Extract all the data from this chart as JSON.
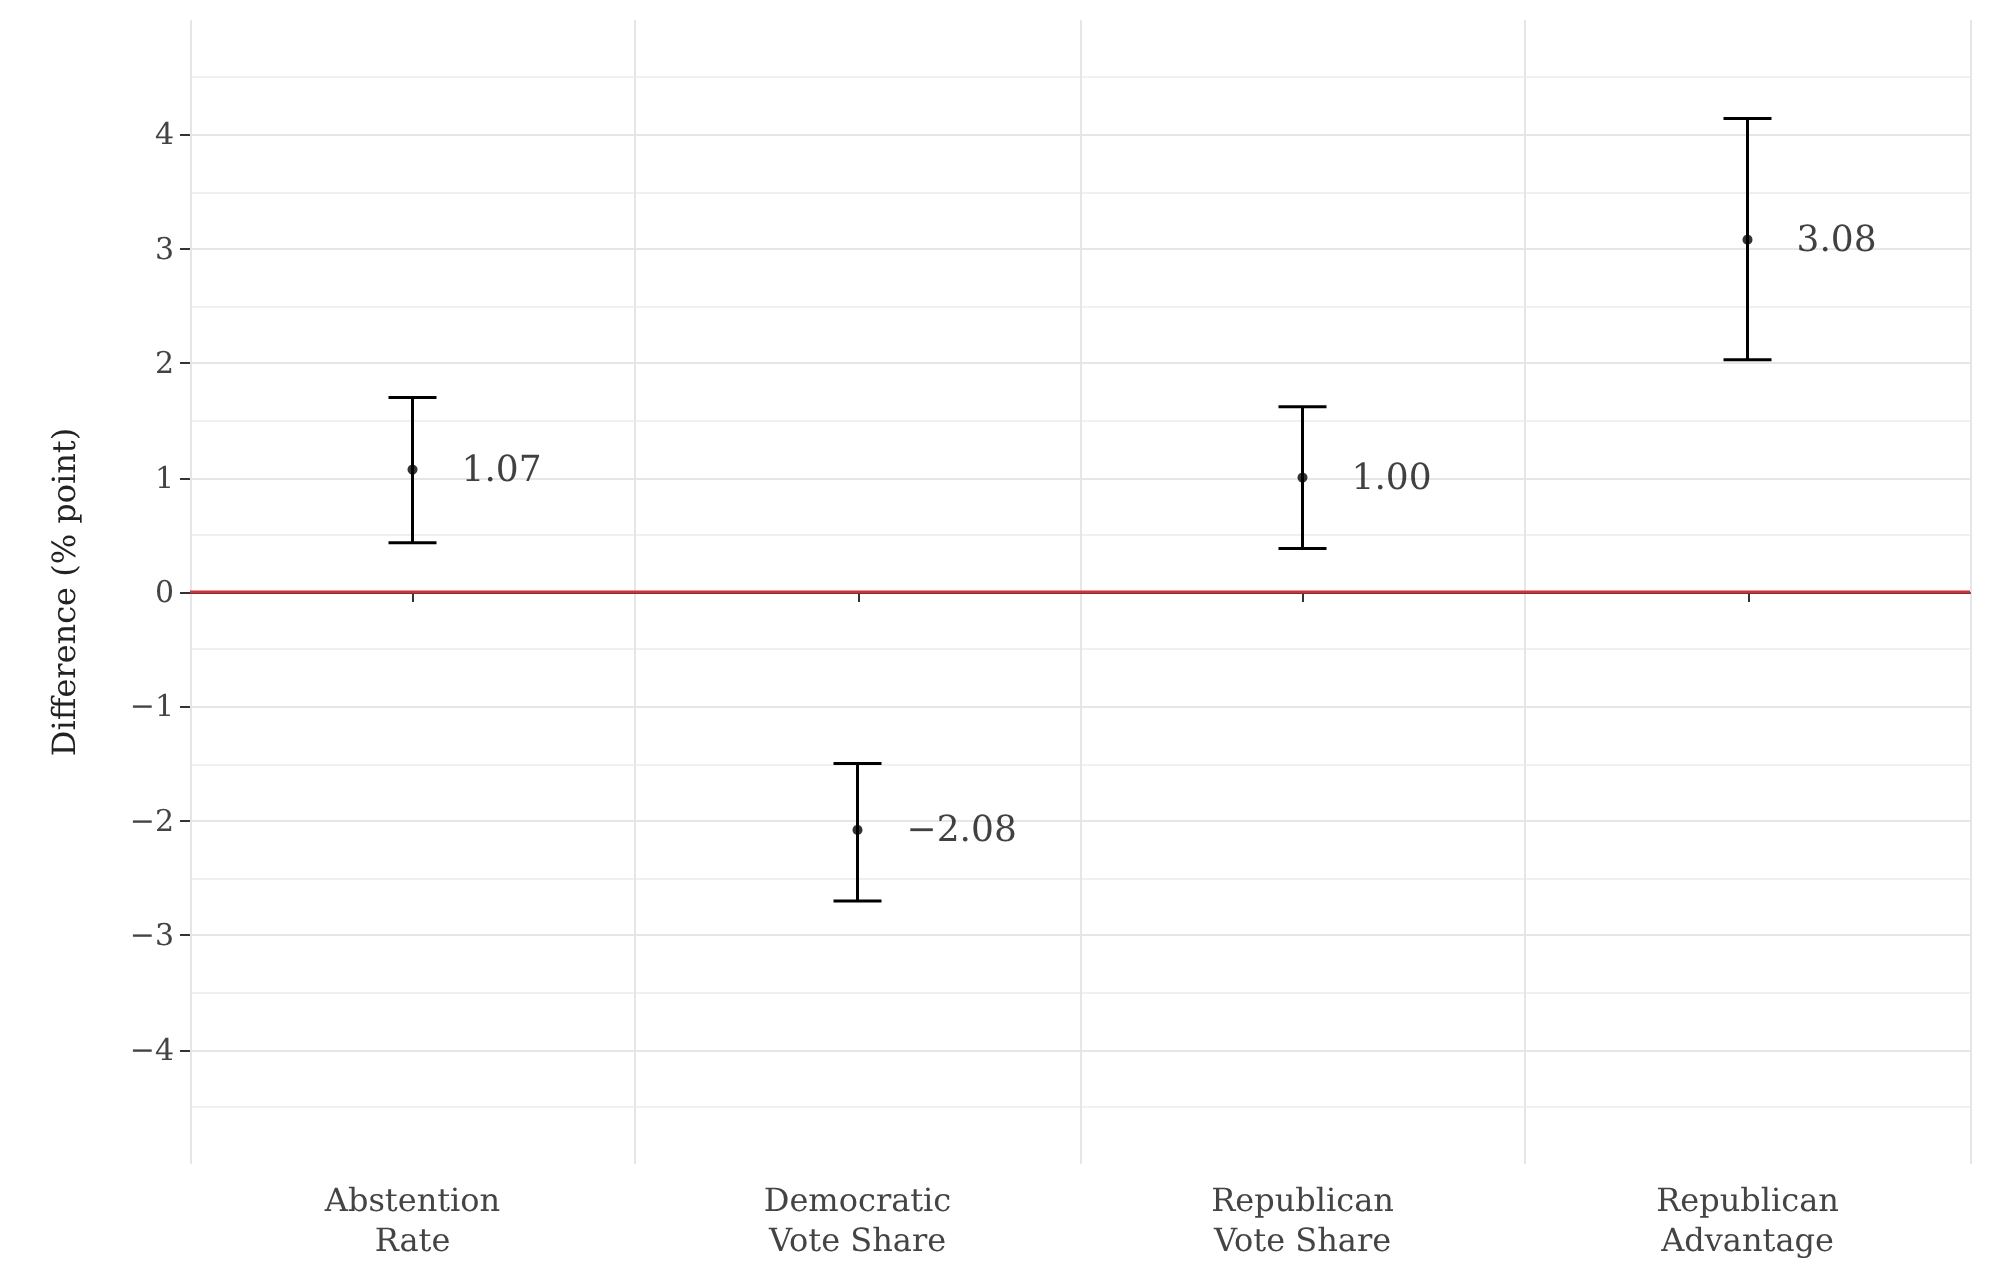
{
  "chart_data": {
    "type": "scatter",
    "ylabel": "Difference (% point)",
    "categories": [
      "Abstention\nRate",
      "Democratic\nVote Share",
      "Republican\nVote Share",
      "Republican\nAdvantage"
    ],
    "values": [
      1.07,
      -2.08,
      1.0,
      3.08
    ],
    "errors": [
      [
        0.43,
        1.7
      ],
      [
        -2.7,
        -1.5
      ],
      [
        0.38,
        1.62
      ],
      [
        2.03,
        4.14
      ]
    ],
    "value_labels": [
      "1.07",
      "−2.08",
      "1.00",
      "3.08"
    ],
    "color": "#000000",
    "ylim": [
      -5,
      5
    ],
    "yticks": [
      -4,
      -3,
      -2,
      -1,
      0,
      1,
      2,
      3,
      4
    ],
    "ref_lines": [
      {
        "axis": "y",
        "value": 0,
        "color": "#cc3333"
      }
    ],
    "grid": true,
    "marker": "circle"
  }
}
